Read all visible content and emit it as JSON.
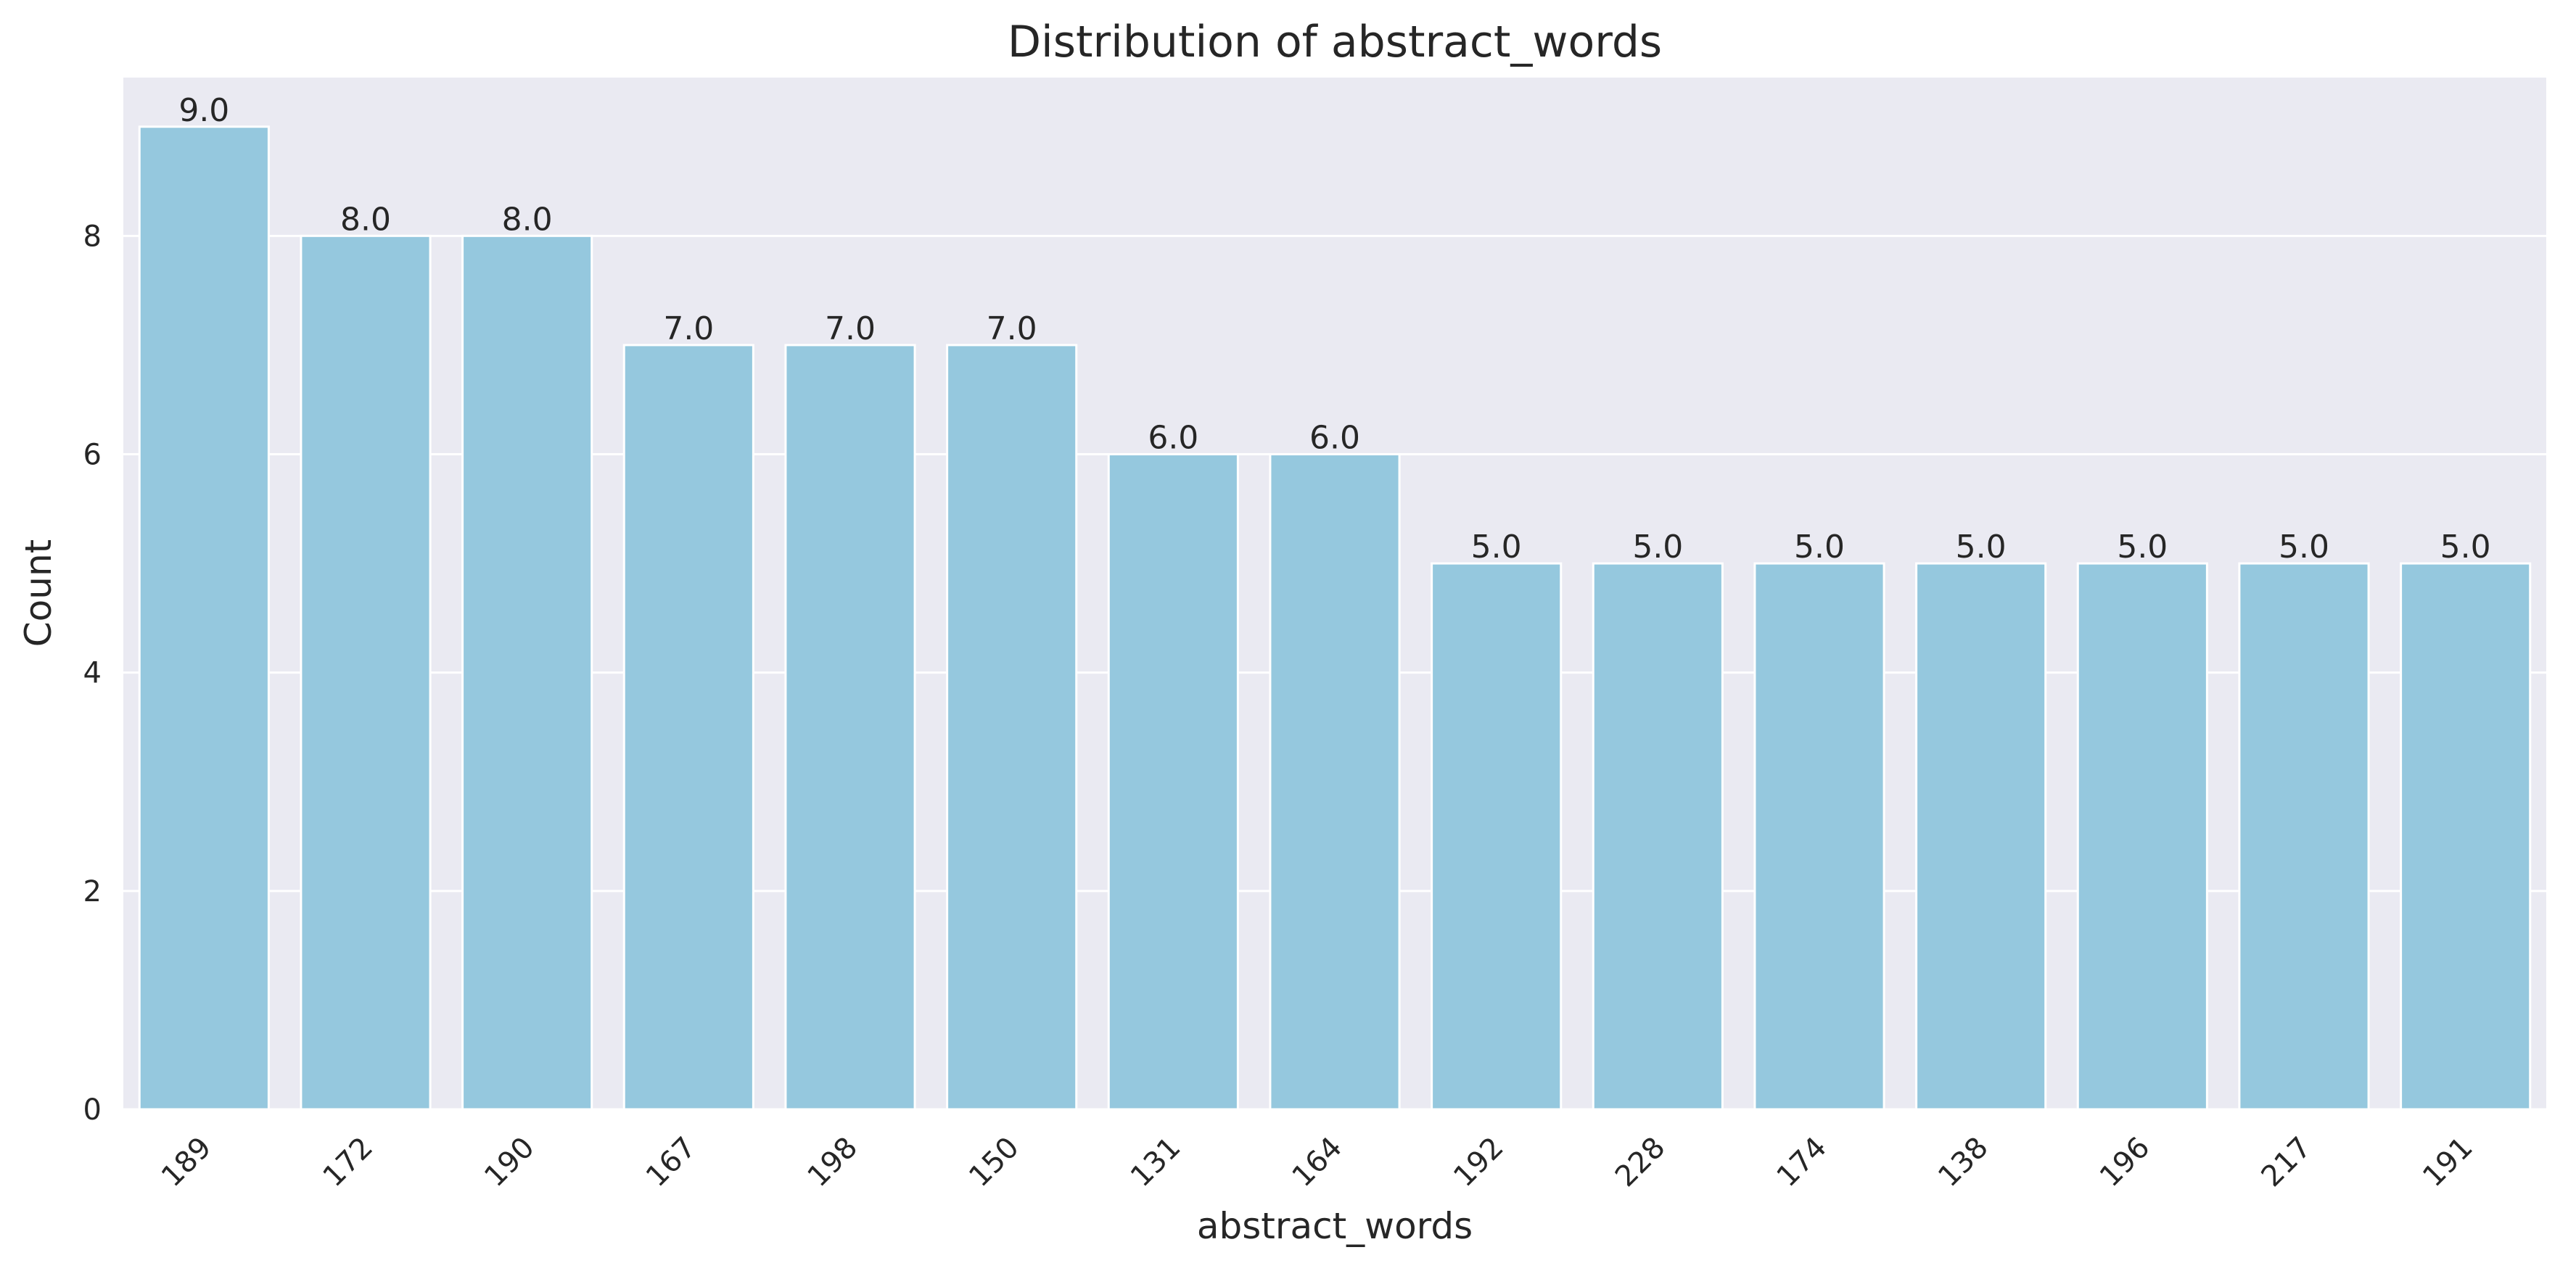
{
  "chart_data": {
    "type": "bar",
    "title": "Distribution of abstract_words",
    "xlabel": "abstract_words",
    "ylabel": "Count",
    "categories": [
      "189",
      "172",
      "190",
      "167",
      "198",
      "150",
      "131",
      "164",
      "192",
      "228",
      "174",
      "138",
      "196",
      "217",
      "191"
    ],
    "values": [
      9,
      8,
      8,
      7,
      7,
      7,
      6,
      6,
      5,
      5,
      5,
      5,
      5,
      5,
      5
    ],
    "data_labels": [
      "9.0",
      "8.0",
      "8.0",
      "7.0",
      "7.0",
      "7.0",
      "6.0",
      "6.0",
      "5.0",
      "5.0",
      "5.0",
      "5.0",
      "5.0",
      "5.0",
      "5.0"
    ],
    "yticks": [
      0,
      2,
      4,
      6,
      8
    ],
    "ylim": [
      0,
      9.45
    ],
    "grid": true,
    "legend": "none",
    "colors": {
      "bar": "#95c8de",
      "plot_background": "#eaeaf2",
      "grid": "#ffffff",
      "text": "#262626"
    }
  }
}
